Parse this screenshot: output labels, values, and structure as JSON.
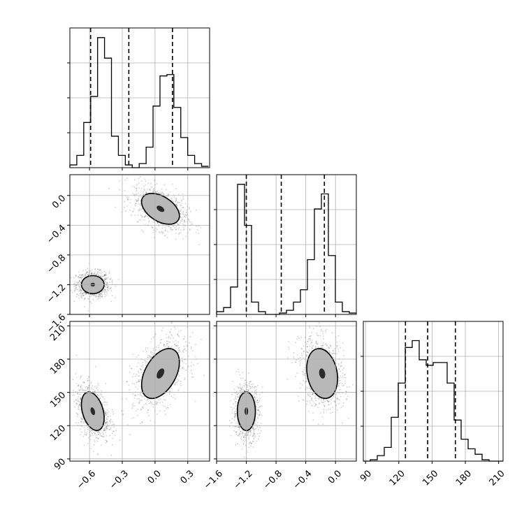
{
  "chart_data": {
    "type": "corner",
    "parameters": [
      {
        "key": "p0",
        "range": [
          -0.78,
          0.5
        ],
        "ticks": [
          {
            "value": -0.6,
            "label": "−0.6"
          },
          {
            "value": -0.3,
            "label": "−0.3"
          },
          {
            "value": 0.0,
            "label": "0.0"
          },
          {
            "value": 0.3,
            "label": "0.3"
          }
        ],
        "quantiles": [
          -0.59,
          -0.24,
          0.16
        ],
        "hist": {
          "bin_start": -0.78,
          "bin_width": 0.0635,
          "heights": [
            0.02,
            0.09,
            0.33,
            0.52,
            0.95,
            0.8,
            0.23,
            0.09,
            0.02,
            0.0,
            0.03,
            0.15,
            0.45,
            0.67,
            0.68,
            0.44,
            0.22,
            0.09,
            0.03,
            0.01
          ]
        }
      },
      {
        "key": "p1",
        "range": [
          -1.6,
          0.28
        ],
        "ticks": [
          {
            "value": -1.6,
            "label": "−1.6"
          },
          {
            "value": -1.2,
            "label": "−1.2"
          },
          {
            "value": -0.8,
            "label": "−0.8"
          },
          {
            "value": -0.4,
            "label": "−0.4"
          },
          {
            "value": 0.0,
            "label": "0.0"
          }
        ],
        "quantiles": [
          -1.2,
          -0.73,
          -0.15
        ],
        "hist": {
          "bin_start": -1.6,
          "bin_width": 0.094,
          "heights": [
            0.02,
            0.05,
            0.2,
            0.95,
            0.65,
            0.09,
            0.02,
            0.0,
            0.0,
            0.01,
            0.03,
            0.09,
            0.18,
            0.4,
            0.77,
            0.88,
            0.43,
            0.09,
            0.02,
            0.01
          ]
        }
      },
      {
        "key": "p2",
        "range": [
          88,
          214
        ],
        "ticks": [
          {
            "value": 90,
            "label": "90"
          },
          {
            "value": 120,
            "label": "120"
          },
          {
            "value": 150,
            "label": "150"
          },
          {
            "value": 180,
            "label": "180"
          },
          {
            "value": 210,
            "label": "210"
          }
        ],
        "quantiles": [
          126,
          146,
          171
        ],
        "hist": {
          "bin_start": 88,
          "bin_width": 6.3,
          "heights": [
            0.0,
            0.01,
            0.04,
            0.1,
            0.32,
            0.57,
            0.83,
            0.88,
            0.74,
            0.7,
            0.72,
            0.72,
            0.57,
            0.3,
            0.16,
            0.09,
            0.05,
            0.01,
            0.0,
            0.0
          ]
        }
      }
    ],
    "clusters": [
      {
        "center": [
          -0.57,
          -1.2,
          133
        ],
        "spread": [
          0.06,
          0.07,
          10
        ],
        "corr": [
          0.0,
          -0.35,
          0.0
        ]
      },
      {
        "center": [
          0.05,
          -0.18,
          167
        ],
        "spread": [
          0.1,
          0.12,
          13
        ],
        "corr": [
          -0.45,
          0.45,
          -0.2
        ]
      }
    ],
    "contour_levels": [
      1.0,
      2.0,
      2.6
    ],
    "hist_ylim": [
      0,
      1.0
    ],
    "hist_gridlines": [
      0.25,
      0.5,
      0.75
    ],
    "quantile_line_style": "dashed",
    "grid": true
  }
}
